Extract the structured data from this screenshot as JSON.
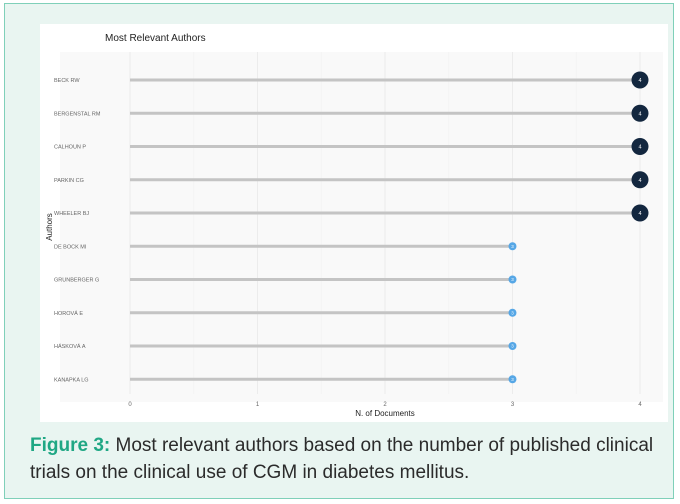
{
  "chart_data": {
    "type": "lollipop",
    "title": "Most Relevant Authors",
    "xlabel": "N. of Documents",
    "ylabel": "Authors",
    "categories": [
      "BECK RW",
      "BERGENSTAL RM",
      "CALHOUN P",
      "PARKIN CG",
      "WHEELER BJ",
      "DE BOCK MI",
      "GRUNBERGER G",
      "HOROVÁ E",
      "HÁSKOVÁ A",
      "KANAPKA LG"
    ],
    "values": [
      4,
      4,
      4,
      4,
      4,
      3,
      3,
      3,
      3,
      3
    ],
    "xlim": [
      0,
      4
    ],
    "xticks": [
      "0",
      "1",
      "2",
      "3",
      "4"
    ],
    "grid": true,
    "colors": {
      "high": "#13273f",
      "low": "#56a7e6",
      "stem": "#c4c4c4"
    }
  },
  "caption": {
    "lead": "Figure 3:",
    "text": " Most relevant authors based on the number of published clinical trials on the clinical use of CGM in diabetes mellitus."
  }
}
